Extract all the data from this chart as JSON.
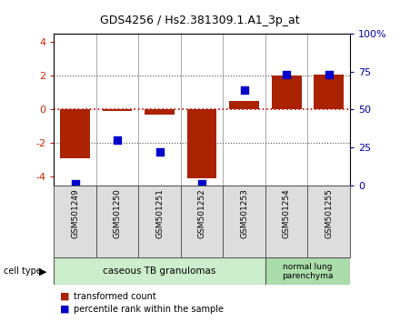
{
  "title": "GDS4256 / Hs2.381309.1.A1_3p_at",
  "samples": [
    "GSM501249",
    "GSM501250",
    "GSM501251",
    "GSM501252",
    "GSM501253",
    "GSM501254",
    "GSM501255"
  ],
  "transformed_counts": [
    -2.9,
    -0.1,
    -0.3,
    -4.1,
    0.5,
    2.0,
    2.1
  ],
  "percentile_ranks": [
    1,
    30,
    22,
    1,
    63,
    73,
    73
  ],
  "ylim_left": [
    -4.5,
    4.5
  ],
  "ylim_right": [
    0,
    100
  ],
  "yticks_left": [
    -4,
    -2,
    0,
    2,
    4
  ],
  "yticks_right": [
    0,
    25,
    50,
    75,
    100
  ],
  "ytick_labels_right": [
    "0",
    "25",
    "50",
    "75",
    "100%"
  ],
  "bar_color": "#AA2200",
  "dot_color": "#0000CC",
  "group1_indices": [
    0,
    1,
    2,
    3,
    4
  ],
  "group2_indices": [
    5,
    6
  ],
  "group1_label": "caseous TB granulomas",
  "group2_label": "normal lung\nparenchyma",
  "group1_color": "#CCEECC",
  "group2_color": "#AADDAA",
  "sample_box_color": "#DDDDDD",
  "cell_type_label": "cell type",
  "legend1_label": "transformed count",
  "legend2_label": "percentile rank within the sample",
  "hline_color": "#CC0000",
  "dotted_line_color": "#555555",
  "bar_width": 0.7
}
